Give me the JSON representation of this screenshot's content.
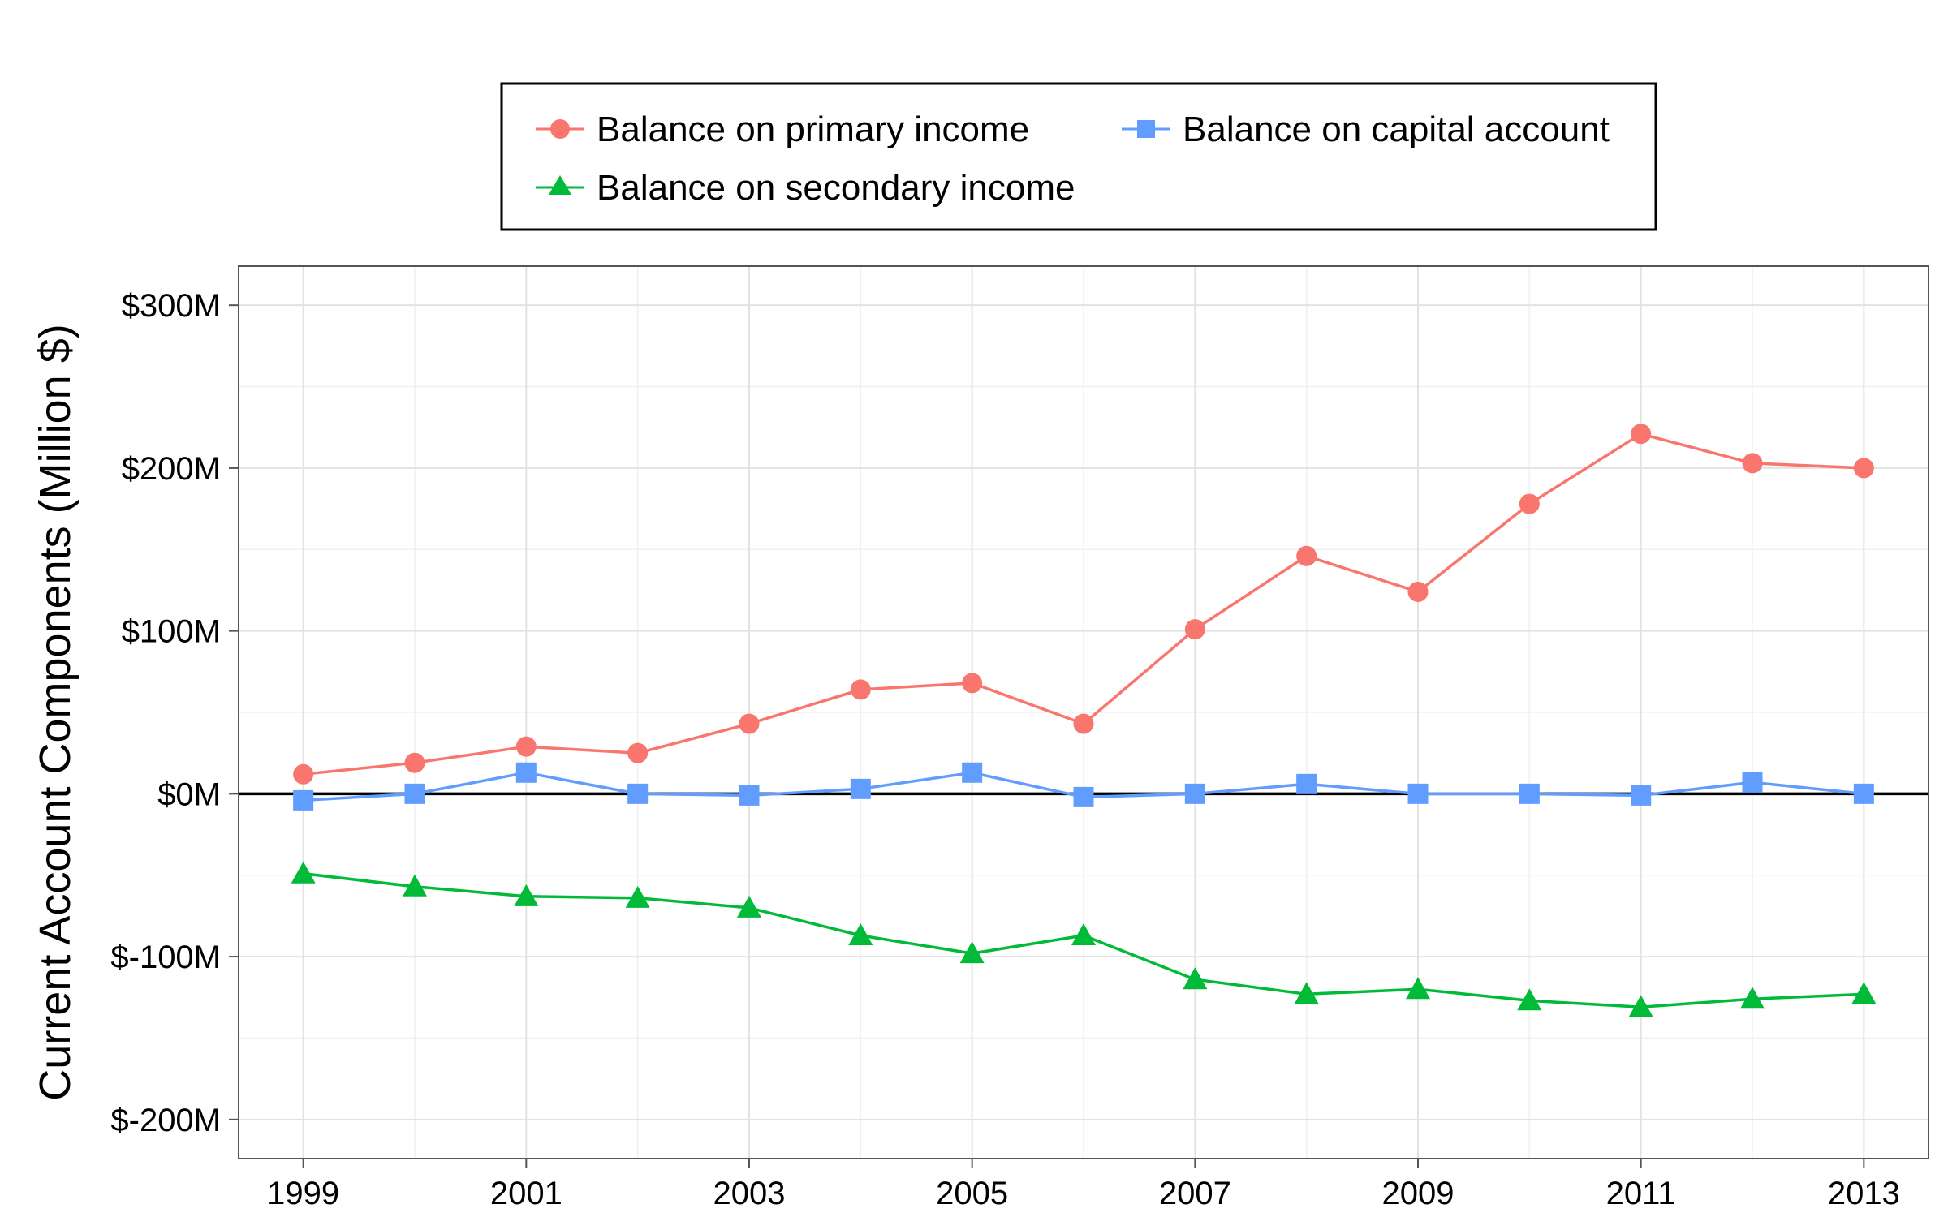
{
  "chart_data": {
    "type": "line",
    "title": "",
    "xlabel": "",
    "ylabel": "Current Account Components (Million $)",
    "x": [
      1999,
      2000,
      2001,
      2002,
      2003,
      2004,
      2005,
      2006,
      2007,
      2008,
      2009,
      2010,
      2011,
      2012,
      2013
    ],
    "x_ticks": [
      "1999",
      "2001",
      "2003",
      "2005",
      "2007",
      "2009",
      "2011",
      "2013"
    ],
    "x_tick_values": [
      1999,
      2001,
      2003,
      2005,
      2007,
      2009,
      2011,
      2013
    ],
    "y_ticks": [
      "$-200M",
      "$-100M",
      "$0M",
      "$100M",
      "$200M",
      "$300M"
    ],
    "y_tick_values": [
      -200,
      -100,
      0,
      100,
      200,
      300
    ],
    "xlim": [
      1998.42,
      2013.58
    ],
    "ylim": [
      -224,
      324
    ],
    "grid": true,
    "zero_line": true,
    "legend_position": "top",
    "series": [
      {
        "name": "Balance on primary income",
        "color": "#F8766D",
        "marker": "circle",
        "values": [
          12,
          19,
          29,
          25,
          43,
          64,
          68,
          43,
          101,
          146,
          124,
          178,
          221,
          203,
          200
        ]
      },
      {
        "name": "Balance on capital account",
        "color": "#619CFF",
        "marker": "square",
        "values": [
          -4,
          0,
          13,
          0,
          -1,
          3,
          13,
          -2,
          0,
          6,
          0,
          0,
          -1,
          7,
          0
        ]
      },
      {
        "name": "Balance on secondary income",
        "color": "#00BA38",
        "marker": "triangle",
        "values": [
          -49,
          -57,
          -63,
          -64,
          -70,
          -87,
          -98,
          -87,
          -114,
          -123,
          -120,
          -127,
          -131,
          -126,
          -123
        ]
      }
    ]
  }
}
